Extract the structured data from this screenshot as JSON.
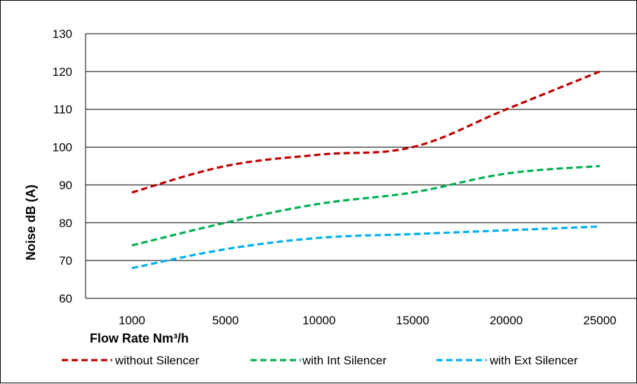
{
  "chart_data": {
    "type": "line",
    "categories": [
      "1000",
      "5000",
      "10000",
      "15000",
      "20000",
      "25000"
    ],
    "series": [
      {
        "name": "without Silencer",
        "values": [
          88,
          95,
          98,
          100,
          110,
          120
        ],
        "color": "#C00000"
      },
      {
        "name": "with Int Silencer",
        "values": [
          74,
          80,
          85,
          88,
          93,
          95
        ],
        "color": "#00B050"
      },
      {
        "name": "with Ext Silencer",
        "values": [
          68,
          73,
          76,
          77,
          78,
          79
        ],
        "color": "#00B0F0"
      }
    ],
    "xlabel": "Flow Rate Nm³/h",
    "ylabel": "Noise dB (A)",
    "ylim": [
      60,
      130
    ],
    "yticks": [
      60,
      70,
      80,
      90,
      100,
      110,
      120,
      130
    ],
    "grid": true,
    "legend_position": "bottom",
    "line_style": "dashed"
  }
}
